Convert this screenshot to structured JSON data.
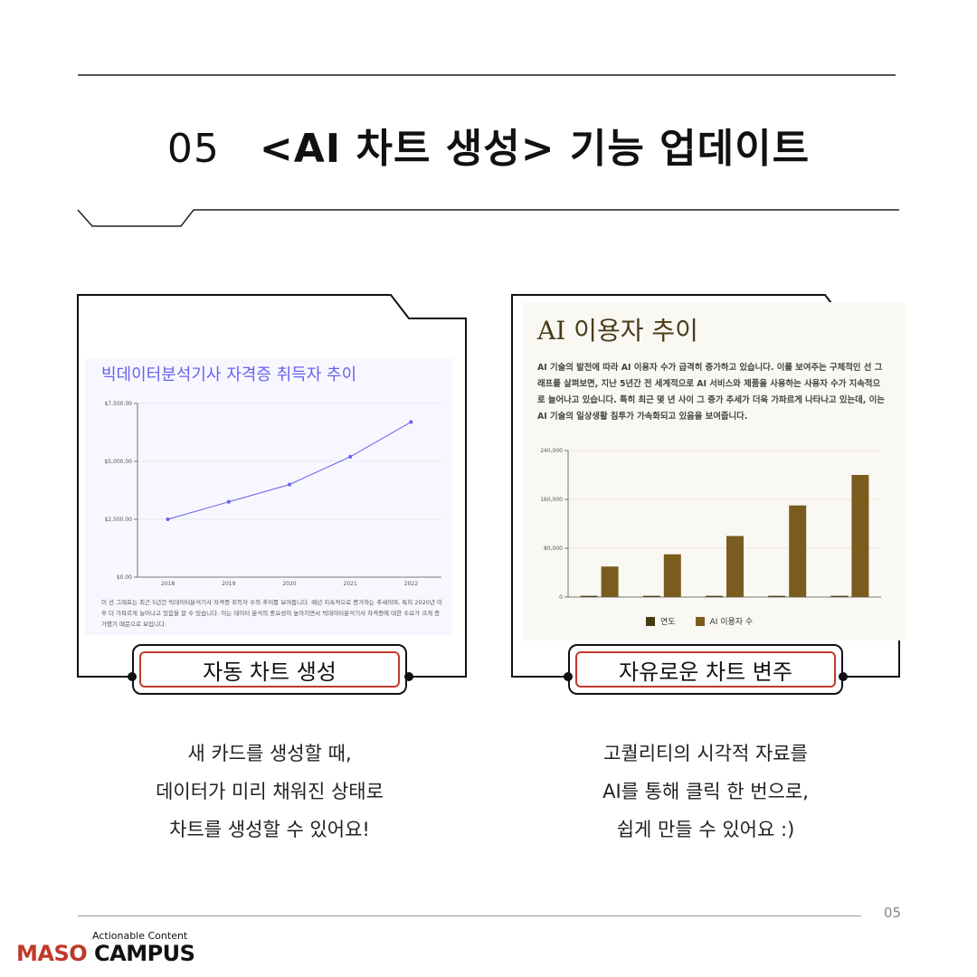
{
  "header": {
    "number": "05",
    "title": "<AI 차트 생성> 기능 업데이트"
  },
  "card_left": {
    "chart_title": "빅데이터분석기사 자격증 취득자 추이",
    "description": "이 선 그래프는 최근 5년간 빅데이터분석기사 자격증 취득자 수의 추이를 보여줍니다. 매년 지속적으로 증가하는 추세이며, 특히 2020년 이후 더 가파르게 늘어나고 있음을 알 수 있습니다. 이는 데이터 분석의 중요성이 높아지면서 빅데이터분석기사 자격증에 대한 수요가 크게 증가했기 때문으로 보입니다.",
    "label": "자동 차트 생성",
    "caption": [
      "새 카드를 생성할 때,",
      "데이터가 미리 채워진 상태로",
      "차트를 생성할 수 있어요!"
    ],
    "accent": "#6661ee"
  },
  "card_right": {
    "chart_title": "AI 이용자 추이",
    "description": "AI 기술의 발전에 따라 AI 이용자 수가 급격히 증가하고 있습니다. 이를 보여주는 구체적인 선 그래프를 살펴보면, 지난 5년간 전 세계적으로 AI 서비스와 제품을 사용하는 사용자 수가 지속적으로 늘어나고 있습니다. 특히 최근 몇 년 사이 그 증가 추세가 더욱 가파르게 나타나고 있는데, 이는 AI 기술의 일상생활 침투가 가속화되고 있음을 보여줍니다.",
    "label": "자유로운 차트 변주",
    "caption": [
      "고퀄리티의 시각적 자료를",
      "AI를 통해 클릭 한 번으로,",
      "쉽게 만들 수 있어요 :)"
    ],
    "accent": "#7a5c1e"
  },
  "chart_data": [
    {
      "type": "line",
      "title": "빅데이터분석기사 자격증 취득자 추이",
      "x": [
        "2018",
        "2019",
        "2020",
        "2021",
        "2022"
      ],
      "y": [
        2500,
        3250,
        4000,
        5200,
        6700
      ],
      "yticks": [
        "$0.00",
        "$2,500.00",
        "$5,000.00",
        "$7,500.00"
      ],
      "ylim": [
        0,
        7500
      ],
      "grid": true,
      "color": "#6661ee"
    },
    {
      "type": "bar",
      "title": "AI 이용자 추이",
      "categories": [
        "",
        "",
        "",
        "",
        ""
      ],
      "series": [
        {
          "name": "연도",
          "values": [
            2018,
            2019,
            2020,
            2021,
            2022
          ],
          "color": "#4a3a12"
        },
        {
          "name": "AI 이용자 수",
          "values": [
            50000,
            70000,
            100000,
            150000,
            200000
          ],
          "color": "#7a5c1e"
        }
      ],
      "yticks": [
        "0",
        "80,000",
        "160,000",
        "240,000"
      ],
      "ylim": [
        0,
        240000
      ],
      "legend": "bottom",
      "grid": true
    }
  ],
  "footer": {
    "page": "05",
    "tagline": "Actionable Content",
    "brand_a": "MASO",
    "brand_b": "CAMPUS"
  }
}
